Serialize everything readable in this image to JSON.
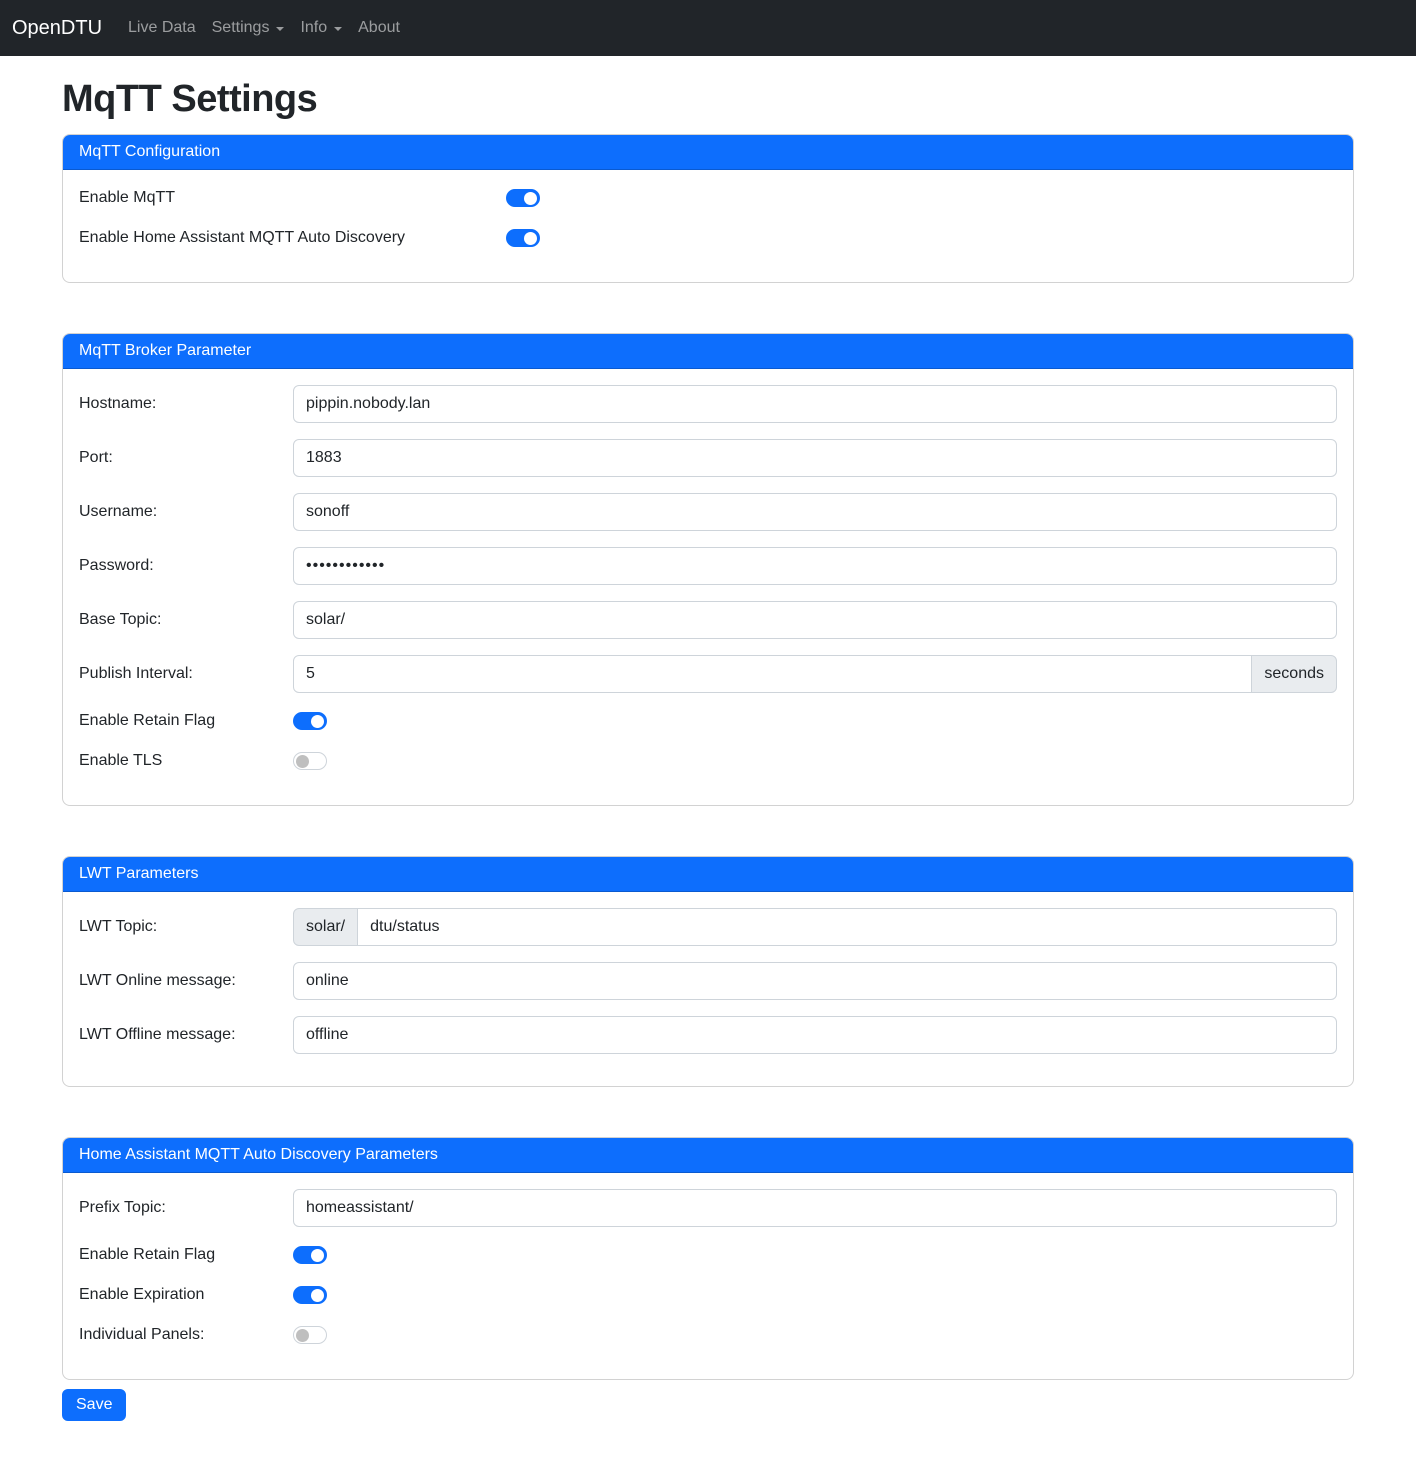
{
  "colors": {
    "accent": "#0d6efd",
    "navbar_bg": "#212529",
    "addon_bg": "#e9ecef",
    "input_border": "#ced4da"
  },
  "navbar": {
    "brand": "OpenDTU",
    "items": [
      {
        "label": "Live Data",
        "has_dropdown": false
      },
      {
        "label": "Settings",
        "has_dropdown": true
      },
      {
        "label": "Info",
        "has_dropdown": true
      },
      {
        "label": "About",
        "has_dropdown": false
      }
    ]
  },
  "page": {
    "title": "MqTT Settings"
  },
  "config_card": {
    "title": "MqTT Configuration",
    "enable_mqtt_label": "Enable MqTT",
    "enable_mqtt_state": "on",
    "enable_hass_label": "Enable Home Assistant MQTT Auto Discovery",
    "enable_hass_state": "on"
  },
  "broker_card": {
    "title": "MqTT Broker Parameter",
    "hostname_label": "Hostname:",
    "hostname_value": "pippin.nobody.lan",
    "port_label": "Port:",
    "port_value": "1883",
    "username_label": "Username:",
    "username_value": "sonoff",
    "password_label": "Password:",
    "password_value": "••••••••••••",
    "base_topic_label": "Base Topic:",
    "base_topic_value": "solar/",
    "publish_interval_label": "Publish Interval:",
    "publish_interval_value": "5",
    "publish_interval_unit": "seconds",
    "retain_label": "Enable Retain Flag",
    "retain_state": "on",
    "tls_label": "Enable TLS",
    "tls_state": "off"
  },
  "lwt_card": {
    "title": "LWT Parameters",
    "topic_label": "LWT Topic:",
    "topic_prefix": "solar/",
    "topic_value": "dtu/status",
    "online_label": "LWT Online message:",
    "online_value": "online",
    "offline_label": "LWT Offline message:",
    "offline_value": "offline"
  },
  "hass_card": {
    "title": "Home Assistant MQTT Auto Discovery Parameters",
    "prefix_label": "Prefix Topic:",
    "prefix_value": "homeassistant/",
    "retain_label": "Enable Retain Flag",
    "retain_state": "on",
    "expiration_label": "Enable Expiration",
    "expiration_state": "on",
    "panels_label": "Individual Panels:",
    "panels_state": "off"
  },
  "actions": {
    "save_label": "Save"
  }
}
